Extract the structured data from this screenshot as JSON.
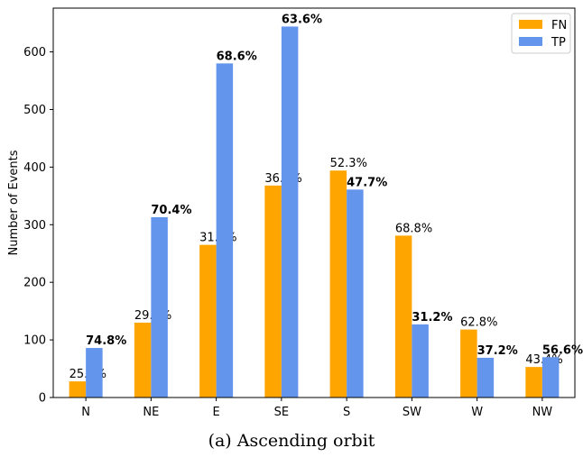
{
  "caption": "(a) Ascending orbit",
  "chart_data": {
    "type": "bar",
    "ylabel": "Number of Events",
    "xlabel": "",
    "ylim": [
      0,
      676
    ],
    "yticks": [
      0,
      100,
      200,
      300,
      400,
      500,
      600
    ],
    "categories": [
      "N",
      "NE",
      "E",
      "SE",
      "S",
      "SW",
      "W",
      "NW"
    ],
    "legend_position": "top-right",
    "series": [
      {
        "name": "FN",
        "color": "#FFA500",
        "values": [
          28,
          130,
          265,
          368,
          394,
          281,
          118,
          53
        ],
        "labels": [
          "25.2%",
          "29.6%",
          "31.4%",
          "36.4%",
          "52.3%",
          "68.8%",
          "62.8%",
          "43.4%"
        ],
        "bold": [
          false,
          false,
          false,
          false,
          false,
          false,
          false,
          false
        ]
      },
      {
        "name": "TP",
        "color": "#6495ED",
        "values": [
          86,
          313,
          580,
          644,
          361,
          127,
          69,
          70
        ],
        "labels": [
          "74.8%",
          "70.4%",
          "68.6%",
          "63.6%",
          "47.7%",
          "31.2%",
          "37.2%",
          "56.6%"
        ],
        "bold": [
          true,
          true,
          true,
          true,
          true,
          true,
          true,
          true
        ]
      }
    ]
  }
}
